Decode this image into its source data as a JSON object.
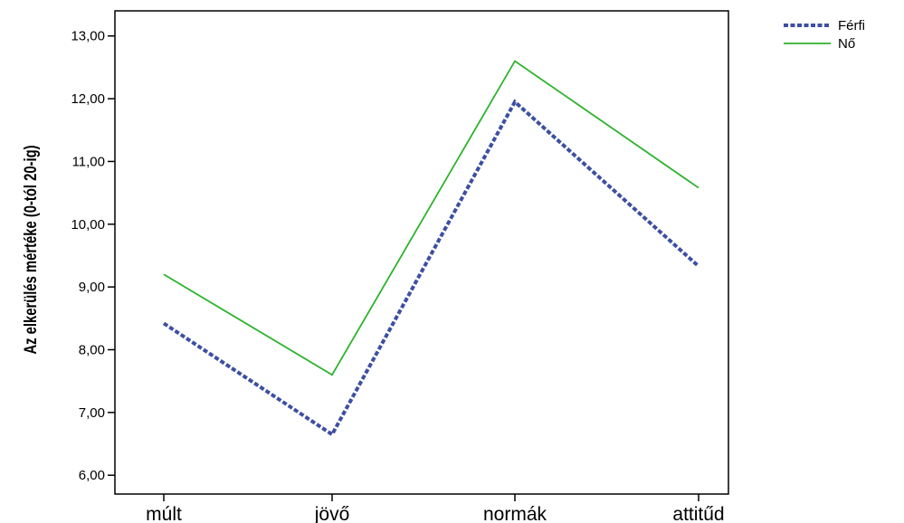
{
  "chart_data": {
    "type": "line",
    "title": "",
    "xlabel": "",
    "ylabel": "Az elkerülés mértéke (0-tól 20-ig)",
    "categories": [
      "múlt",
      "jövő",
      "normák",
      "attitűd"
    ],
    "yticks": [
      "6,00",
      "7,00",
      "8,00",
      "9,00",
      "10,00",
      "11,00",
      "12,00",
      "13,00"
    ],
    "ylim": [
      5.7,
      13.4
    ],
    "grid": false,
    "legend_position": "top-right",
    "series": [
      {
        "name": "Férfi",
        "values": [
          8.42,
          6.65,
          11.95,
          9.33
        ],
        "color": "#3d4fa3",
        "style": "dashed"
      },
      {
        "name": "Nő",
        "values": [
          9.2,
          7.6,
          12.6,
          10.58
        ],
        "color": "#2db32d",
        "style": "solid"
      }
    ]
  }
}
